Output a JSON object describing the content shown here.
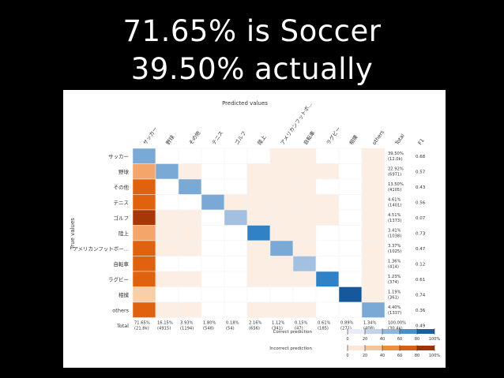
{
  "slide": {
    "title_line1": "71.65% is Soccer",
    "title_line2": "39.50% actually"
  },
  "chart_data": {
    "type": "heatmap",
    "title": "Predicted values",
    "xlabel": "Predicted values",
    "ylabel": "True values",
    "categories": [
      "サッカー",
      "野球",
      "その他",
      "テニス",
      "ゴルフ",
      "陸上",
      "アメリカンフットボー...",
      "自転車",
      "ラグビー",
      "相撲",
      "others"
    ],
    "column_labels": [
      "サッカー",
      "野球",
      "その他",
      "テニス",
      "ゴルフ",
      "陸上",
      "アメリカンフットボ...",
      "自転車",
      "ラグビー",
      "相撲",
      "others",
      "Total",
      "F1"
    ],
    "total_label": "Total",
    "f1_label": "F1",
    "matrix": [
      [
        3,
        0,
        0,
        0,
        0,
        0,
        1,
        1,
        0,
        0,
        1
      ],
      [
        1,
        3,
        1,
        0,
        0,
        1,
        1,
        1,
        1,
        0,
        1
      ],
      [
        1,
        0,
        3,
        0,
        0,
        1,
        1,
        1,
        0,
        0,
        1
      ],
      [
        1,
        0,
        0,
        3,
        1,
        1,
        1,
        1,
        1,
        0,
        1
      ],
      [
        1,
        1,
        1,
        0,
        2,
        1,
        1,
        1,
        1,
        0,
        1
      ],
      [
        1,
        1,
        1,
        0,
        0,
        4,
        1,
        1,
        0,
        0,
        1
      ],
      [
        1,
        1,
        1,
        0,
        0,
        1,
        3,
        1,
        0,
        0,
        1
      ],
      [
        1,
        0,
        0,
        0,
        0,
        1,
        1,
        2,
        0,
        0,
        1
      ],
      [
        1,
        1,
        1,
        0,
        0,
        1,
        1,
        1,
        4,
        0,
        1
      ],
      [
        1,
        0,
        0,
        0,
        0,
        0,
        0,
        0,
        0,
        5,
        1
      ],
      [
        1,
        1,
        1,
        0,
        0,
        1,
        1,
        1,
        0,
        0,
        3
      ]
    ],
    "first_col_levels": [
      5,
      2,
      4,
      4,
      5,
      2,
      4,
      4,
      4,
      1,
      4
    ],
    "row_totals": [
      {
        "pct": "39.50%",
        "count": "(12.0k)",
        "f1": "0.68"
      },
      {
        "pct": "22.92%",
        "count": "(6971)",
        "f1": "0.57"
      },
      {
        "pct": "13.50%",
        "count": "(4105)",
        "f1": "0.43"
      },
      {
        "pct": "4.61%",
        "count": "(1401)",
        "f1": "0.56"
      },
      {
        "pct": "4.51%",
        "count": "(1373)",
        "f1": "0.07"
      },
      {
        "pct": "3.41%",
        "count": "(1038)",
        "f1": "0.73"
      },
      {
        "pct": "3.37%",
        "count": "(1025)",
        "f1": "0.47"
      },
      {
        "pct": "1.36%",
        "count": "(414)",
        "f1": "0.12"
      },
      {
        "pct": "1.23%",
        "count": "(374)",
        "f1": "0.61"
      },
      {
        "pct": "1.19%",
        "count": "(361)",
        "f1": "0.74"
      },
      {
        "pct": "4.40%",
        "count": "(1337)",
        "f1": "0.36"
      }
    ],
    "column_totals": [
      {
        "pct": "71.65%",
        "count": "(21.8k)"
      },
      {
        "pct": "16.15%",
        "count": "(4915)"
      },
      {
        "pct": "3.93%",
        "count": "(1194)"
      },
      {
        "pct": "1.80%",
        "count": "(548)"
      },
      {
        "pct": "0.18%",
        "count": "(54)"
      },
      {
        "pct": "2.16%",
        "count": "(656)"
      },
      {
        "pct": "1.12%",
        "count": "(341)"
      },
      {
        "pct": "0.15%",
        "count": "(47)"
      },
      {
        "pct": "0.61%",
        "count": "(185)"
      },
      {
        "pct": "0.89%",
        "count": "(271)"
      },
      {
        "pct": "1.34%",
        "count": "(408)"
      }
    ],
    "grand_total": {
      "pct": "100.00%",
      "count": "(30.4k)",
      "f1": "0.49"
    },
    "legend": [
      {
        "label": "Correct prediction",
        "ticks": [
          "0",
          "20",
          "40",
          "60",
          "80",
          "100%"
        ],
        "colors": [
          "#e7ecf6",
          "#c6d2ea",
          "#8fb5d8",
          "#4b8fc9",
          "#1a5f9e"
        ]
      },
      {
        "label": "Incorrect prediction",
        "ticks": [
          "0",
          "20",
          "40",
          "60",
          "80",
          "100%"
        ],
        "colors": [
          "#fbe6d8",
          "#f6c49e",
          "#ef8f3c",
          "#d95e10",
          "#9e3306"
        ]
      }
    ],
    "colors": {
      "empty": "#ffffff",
      "light": "#fdeee4",
      "orange_levels": [
        "#fdeee4",
        "#f8cfa8",
        "#f4a56a",
        "#ec7d2a",
        "#e0620e",
        "#a83708"
      ],
      "correct_levels": [
        "#ffffff",
        "#f0eef6",
        "#c8d4ea",
        "#a3c0e0",
        "#7aa9d6",
        "#2f82c5",
        "#15599c"
      ]
    }
  }
}
